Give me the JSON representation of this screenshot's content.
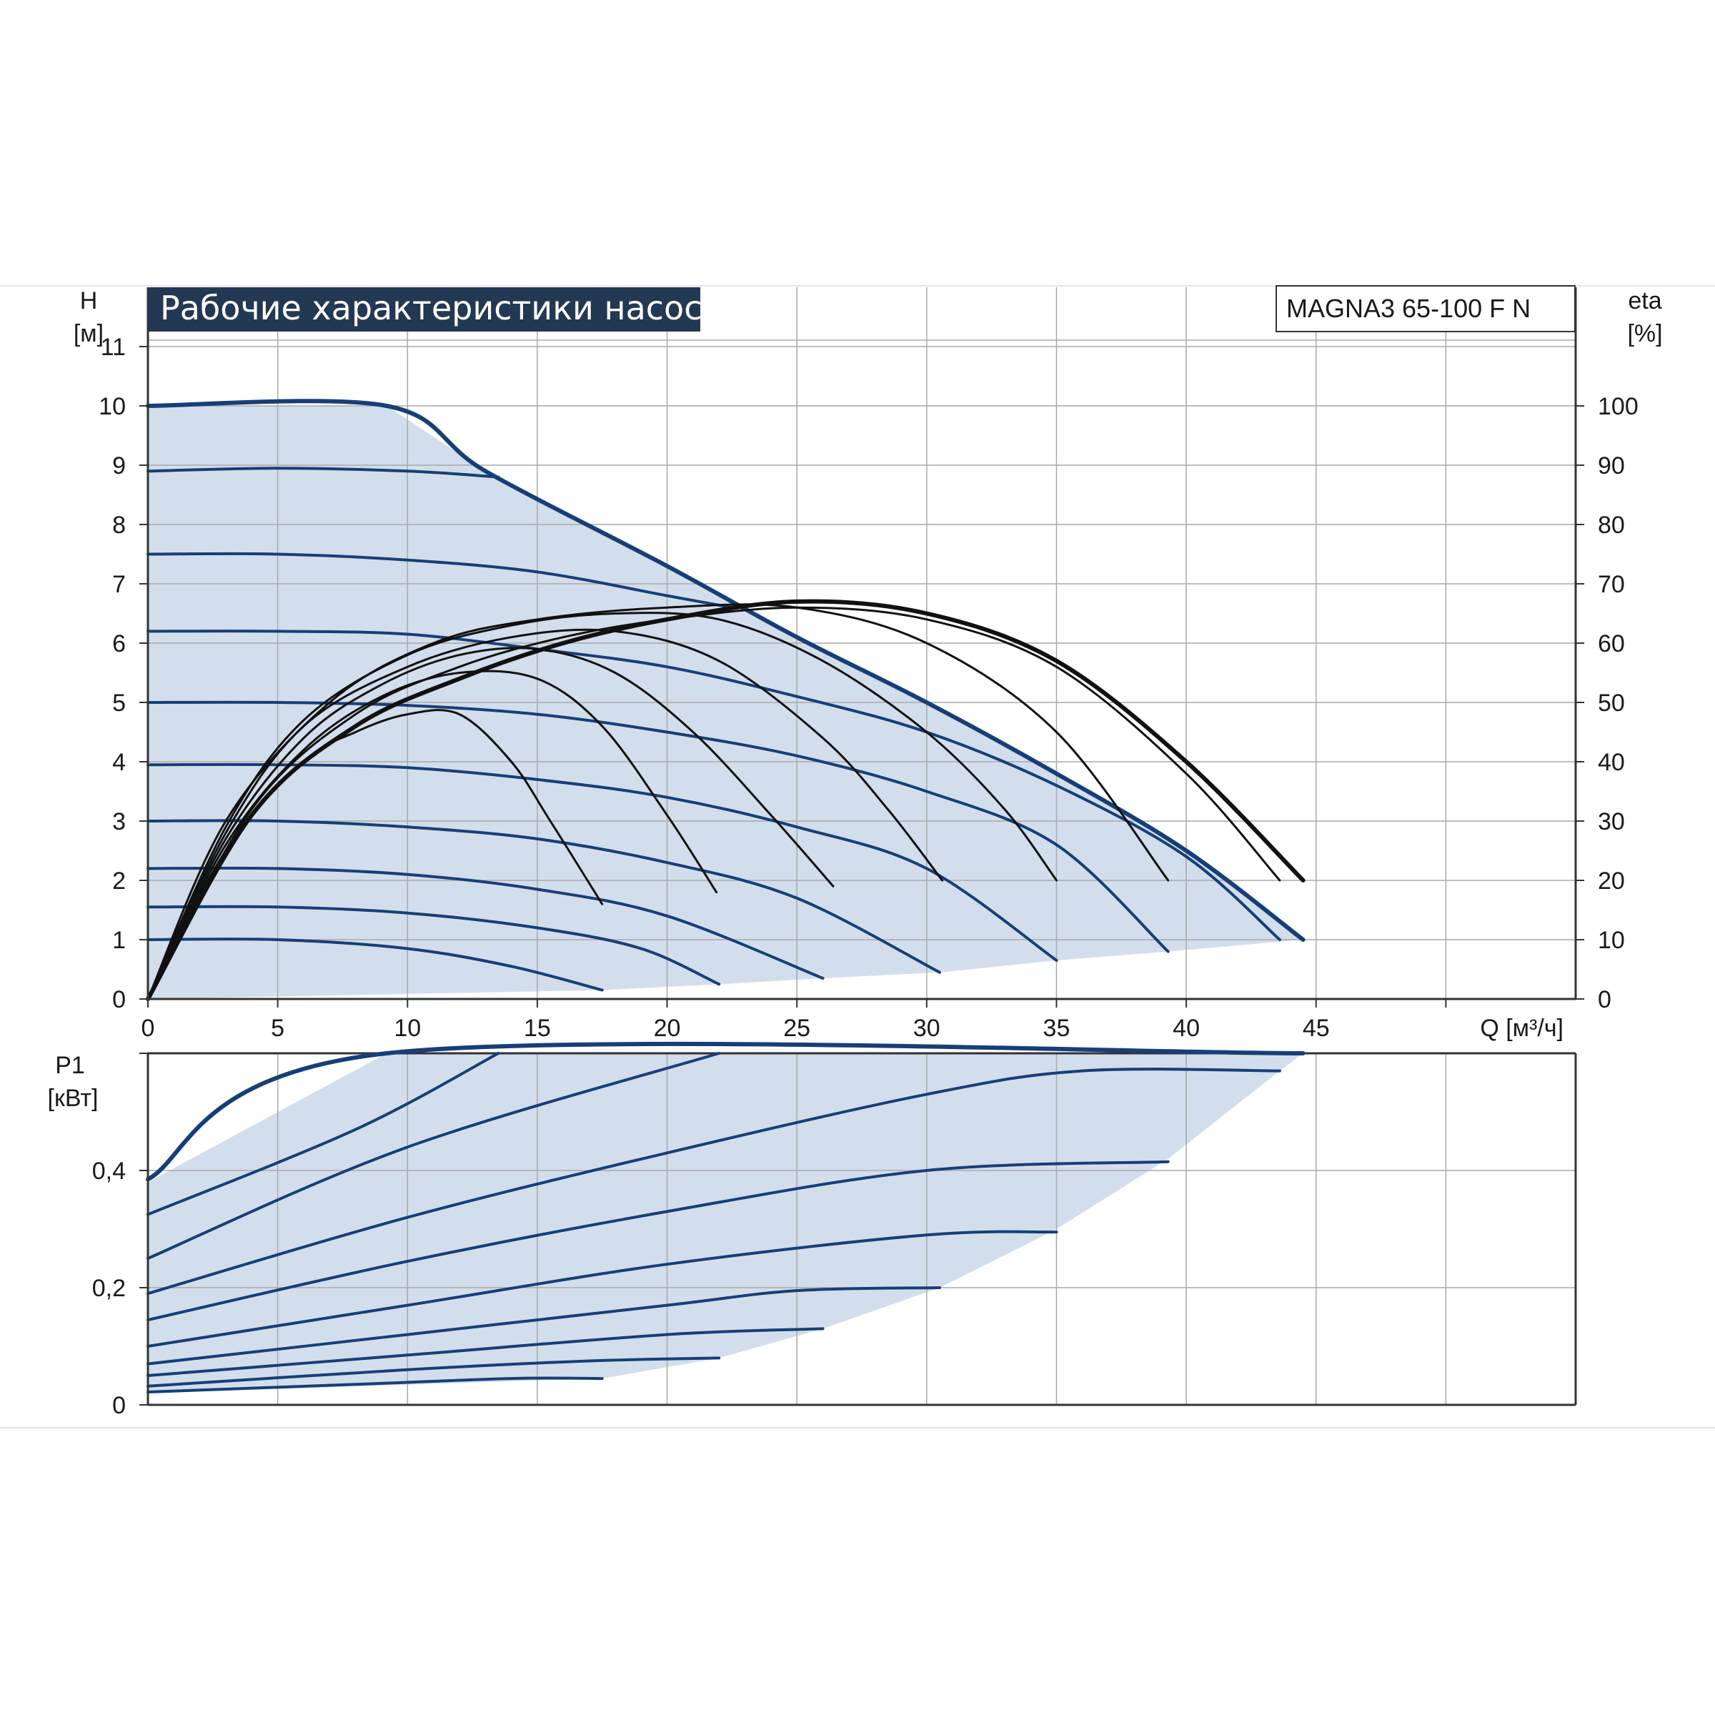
{
  "title": "Рабочие характеристики насоса",
  "model": "MAGNA3 65-100 F N",
  "colors": {
    "curve_blue": "#163f77",
    "fill_blue": "#d3deec",
    "efficiency_black": "#111111",
    "grid": "#a9a9a9",
    "title_bg": "#233852"
  },
  "chart_data": [
    {
      "id": "head",
      "type": "line",
      "x_axis": {
        "label": "Q [м³/ч]",
        "range": [
          0,
          55
        ],
        "ticks": [
          "0",
          "5",
          "10",
          "15",
          "20",
          "25",
          "30",
          "35",
          "40",
          "45"
        ]
      },
      "y_axis": {
        "label": "H",
        "unit": "[м]",
        "range": [
          0,
          12
        ],
        "ticks": [
          "0",
          "1",
          "2",
          "3",
          "4",
          "5",
          "6",
          "7",
          "8",
          "9",
          "10",
          "11"
        ]
      },
      "y2_axis": {
        "label": "eta",
        "unit": "[%]",
        "range": [
          0,
          120
        ],
        "ticks": [
          "0",
          "10",
          "20",
          "30",
          "40",
          "50",
          "60",
          "70",
          "80",
          "90",
          "100"
        ]
      },
      "grid": true,
      "envelope": [
        [
          0,
          10
        ],
        [
          9.2,
          10
        ],
        [
          13,
          8.9
        ],
        [
          20,
          7.3
        ],
        [
          25,
          6.1
        ],
        [
          30,
          5.0
        ],
        [
          35,
          3.8
        ],
        [
          40,
          2.5
        ],
        [
          44.5,
          1.0
        ],
        [
          39.3,
          0.8
        ],
        [
          35,
          0.65
        ],
        [
          30.5,
          0.45
        ],
        [
          26,
          0.35
        ],
        [
          22,
          0.25
        ],
        [
          17.5,
          0.15
        ],
        [
          0,
          0
        ]
      ],
      "max_curve": [
        [
          0,
          10
        ],
        [
          9.2,
          10
        ],
        [
          13,
          8.9
        ],
        [
          20,
          7.3
        ],
        [
          25,
          6.1
        ],
        [
          30,
          5.0
        ],
        [
          35,
          3.8
        ],
        [
          40,
          2.5
        ],
        [
          44.5,
          1.0
        ]
      ],
      "speed_curves": [
        {
          "values": [
            [
              0,
              8.9
            ],
            [
              5,
              8.95
            ],
            [
              10,
              8.9
            ],
            [
              13.5,
              8.8
            ]
          ]
        },
        {
          "values": [
            [
              0,
              7.5
            ],
            [
              5,
              7.5
            ],
            [
              10,
              7.4
            ],
            [
              15,
              7.2
            ],
            [
              20,
              6.8
            ],
            [
              22.5,
              6.6
            ]
          ]
        },
        {
          "values": [
            [
              0,
              6.2
            ],
            [
              5,
              6.2
            ],
            [
              10,
              6.15
            ],
            [
              15,
              5.9
            ],
            [
              20,
              5.6
            ],
            [
              25,
              5.1
            ],
            [
              30,
              4.5
            ],
            [
              35,
              3.6
            ],
            [
              40,
              2.4
            ],
            [
              43.6,
              1.0
            ]
          ]
        },
        {
          "values": [
            [
              0,
              5.0
            ],
            [
              5,
              5.0
            ],
            [
              10,
              4.95
            ],
            [
              15,
              4.8
            ],
            [
              20,
              4.5
            ],
            [
              25,
              4.1
            ],
            [
              30,
              3.5
            ],
            [
              35,
              2.6
            ],
            [
              39.3,
              0.8
            ]
          ]
        },
        {
          "values": [
            [
              0,
              3.95
            ],
            [
              5,
              3.95
            ],
            [
              10,
              3.9
            ],
            [
              15,
              3.7
            ],
            [
              20,
              3.4
            ],
            [
              25,
              2.9
            ],
            [
              30,
              2.2
            ],
            [
              35,
              0.65
            ]
          ]
        },
        {
          "values": [
            [
              0,
              3.0
            ],
            [
              5,
              3.0
            ],
            [
              10,
              2.9
            ],
            [
              15,
              2.7
            ],
            [
              20,
              2.3
            ],
            [
              25,
              1.7
            ],
            [
              30.5,
              0.45
            ]
          ]
        },
        {
          "values": [
            [
              0,
              2.2
            ],
            [
              5,
              2.2
            ],
            [
              10,
              2.1
            ],
            [
              15,
              1.85
            ],
            [
              20,
              1.4
            ],
            [
              26,
              0.35
            ]
          ]
        },
        {
          "values": [
            [
              0,
              1.55
            ],
            [
              5,
              1.55
            ],
            [
              10,
              1.45
            ],
            [
              15,
              1.2
            ],
            [
              19,
              0.85
            ],
            [
              22,
              0.25
            ]
          ]
        },
        {
          "values": [
            [
              0,
              1.0
            ],
            [
              5,
              1.0
            ],
            [
              10,
              0.85
            ],
            [
              14,
              0.55
            ],
            [
              17.5,
              0.15
            ]
          ]
        }
      ],
      "efficiency_curves": [
        {
          "values": [
            [
              0,
              0
            ],
            [
              3,
              25
            ],
            [
              6,
              40
            ],
            [
              8,
              45
            ],
            [
              10,
              48
            ],
            [
              12,
              48
            ],
            [
              14,
              40
            ],
            [
              15.5,
              30
            ],
            [
              17.5,
              16
            ]
          ]
        },
        {
          "values": [
            [
              0,
              0
            ],
            [
              3,
              26
            ],
            [
              6,
              42
            ],
            [
              9,
              51
            ],
            [
              12,
              55
            ],
            [
              15,
              54
            ],
            [
              17.5,
              46
            ],
            [
              20,
              31
            ],
            [
              21.9,
              18
            ]
          ]
        },
        {
          "values": [
            [
              0,
              0
            ],
            [
              3,
              27
            ],
            [
              6,
              44
            ],
            [
              9,
              53
            ],
            [
              12,
              58
            ],
            [
              15,
              59
            ],
            [
              18,
              55
            ],
            [
              21,
              45
            ],
            [
              24,
              31
            ],
            [
              26.4,
              19
            ]
          ]
        },
        {
          "values": [
            [
              0,
              0
            ],
            [
              3,
              28
            ],
            [
              6,
              46
            ],
            [
              10,
              56
            ],
            [
              14,
              61
            ],
            [
              18,
              62
            ],
            [
              22,
              57
            ],
            [
              26,
              44
            ],
            [
              28.5,
              32
            ],
            [
              30.6,
              20
            ]
          ]
        },
        {
          "values": [
            [
              0,
              0
            ],
            [
              3,
              29
            ],
            [
              6,
              47
            ],
            [
              10,
              58
            ],
            [
              14,
              63
            ],
            [
              18,
              65
            ],
            [
              22,
              64
            ],
            [
              26,
              57
            ],
            [
              30,
              45
            ],
            [
              33,
              32
            ],
            [
              35,
              20
            ]
          ]
        },
        {
          "values": [
            [
              0,
              0
            ],
            [
              3,
              30
            ],
            [
              7,
              50
            ],
            [
              11,
              60
            ],
            [
              15,
              64
            ],
            [
              20,
              66
            ],
            [
              25,
              66
            ],
            [
              30,
              60
            ],
            [
              35,
              45
            ],
            [
              39.3,
              20
            ]
          ]
        },
        {
          "values": [
            [
              0,
              0
            ],
            [
              4,
              32
            ],
            [
              8,
              48
            ],
            [
              12,
              56
            ],
            [
              16,
              61
            ],
            [
              20,
              64
            ],
            [
              25,
              66
            ],
            [
              30,
              64
            ],
            [
              35,
              56
            ],
            [
              40,
              38
            ],
            [
              43.6,
              20
            ]
          ]
        },
        {
          "values": [
            [
              0,
              0
            ],
            [
              4,
              31
            ],
            [
              8,
              46
            ],
            [
              12,
              54
            ],
            [
              16,
              60
            ],
            [
              20,
              64
            ],
            [
              25,
              67
            ],
            [
              30,
              65
            ],
            [
              35,
              57
            ],
            [
              40,
              40
            ],
            [
              44.5,
              20
            ]
          ]
        }
      ]
    },
    {
      "id": "power",
      "type": "line",
      "x_axis": {
        "range": [
          0,
          55
        ]
      },
      "y_axis": {
        "label": "P1",
        "unit": "[кВт]",
        "range": [
          0,
          0.6
        ],
        "ticks": [
          "0",
          "0,2",
          "0,4"
        ]
      },
      "grid": true,
      "envelope": [
        [
          0,
          0.38
        ],
        [
          9.2,
          0.6
        ],
        [
          44.5,
          0.6
        ],
        [
          43.6,
          0.57
        ],
        [
          39.3,
          0.42
        ],
        [
          35,
          0.3
        ],
        [
          30.5,
          0.2
        ],
        [
          26,
          0.13
        ],
        [
          22,
          0.08
        ],
        [
          17.5,
          0.045
        ],
        [
          0,
          0.02
        ]
      ],
      "power_curves": [
        {
          "values": [
            [
              0,
              0.385
            ],
            [
              9.2,
              0.6
            ],
            [
              44.5,
              0.6
            ]
          ]
        },
        {
          "values": [
            [
              0,
              0.325
            ],
            [
              8,
              0.47
            ],
            [
              13.5,
              0.6
            ]
          ]
        },
        {
          "values": [
            [
              0,
              0.25
            ],
            [
              10,
              0.44
            ],
            [
              22,
              0.6
            ]
          ]
        },
        {
          "values": [
            [
              0,
              0.19
            ],
            [
              10,
              0.32
            ],
            [
              20,
              0.43
            ],
            [
              30,
              0.53
            ],
            [
              36,
              0.57
            ],
            [
              43.6,
              0.57
            ]
          ]
        },
        {
          "values": [
            [
              0,
              0.145
            ],
            [
              10,
              0.245
            ],
            [
              20,
              0.33
            ],
            [
              30,
              0.4
            ],
            [
              39.3,
              0.415
            ]
          ]
        },
        {
          "values": [
            [
              0,
              0.1
            ],
            [
              10,
              0.17
            ],
            [
              20,
              0.24
            ],
            [
              30,
              0.29
            ],
            [
              35,
              0.295
            ]
          ]
        },
        {
          "values": [
            [
              0,
              0.07
            ],
            [
              10,
              0.12
            ],
            [
              20,
              0.17
            ],
            [
              25,
              0.195
            ],
            [
              30.5,
              0.2
            ]
          ]
        },
        {
          "values": [
            [
              0,
              0.05
            ],
            [
              10,
              0.085
            ],
            [
              20,
              0.12
            ],
            [
              26,
              0.13
            ]
          ]
        },
        {
          "values": [
            [
              0,
              0.032
            ],
            [
              10,
              0.06
            ],
            [
              17,
              0.075
            ],
            [
              22,
              0.08
            ]
          ]
        },
        {
          "values": [
            [
              0,
              0.022
            ],
            [
              8,
              0.035
            ],
            [
              14,
              0.045
            ],
            [
              17.5,
              0.045
            ]
          ]
        }
      ]
    }
  ]
}
